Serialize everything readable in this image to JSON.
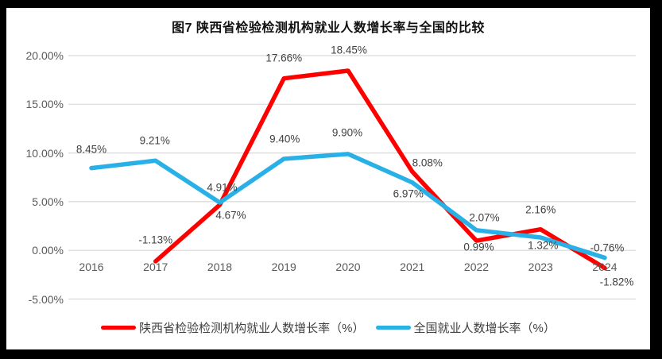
{
  "frame": {
    "background": "#000000",
    "canvas_background": "#ffffff"
  },
  "colors": {
    "grid": "#d9d9d9",
    "axis_text": "#595959",
    "data_label_text": "#404040",
    "title_text": "#111111",
    "series_red": "#fe0000",
    "series_blue": "#29b0e6"
  },
  "chart_data": {
    "type": "line",
    "title": "图7 陕西省检验检测机构就业人数增长率与全国的比较",
    "xlabel": "",
    "ylabel": "",
    "categories": [
      "2016",
      "2017",
      "2018",
      "2019",
      "2020",
      "2021",
      "2022",
      "2023",
      "2024"
    ],
    "series": [
      {
        "name": "陕西省检验检测机构就业人数增长率（%）",
        "color": "#fe0000",
        "values": [
          null,
          -1.13,
          4.67,
          17.66,
          18.45,
          8.08,
          0.99,
          2.16,
          -1.82
        ],
        "labels": [
          null,
          "-1.13%",
          "4.67%",
          "17.66%",
          "18.45%",
          "8.08%",
          "0.99%",
          "2.16%",
          "-1.82%"
        ],
        "label_offsets": [
          null,
          [
            0,
            -27
          ],
          [
            14,
            13
          ],
          [
            0,
            -26
          ],
          [
            1,
            -26
          ],
          [
            19,
            -11
          ],
          [
            3,
            8
          ],
          [
            0,
            -25
          ],
          [
            15,
            17
          ]
        ]
      },
      {
        "name": "全国就业人数增长率（%）",
        "color": "#29b0e6",
        "values": [
          8.45,
          9.21,
          4.91,
          9.4,
          9.9,
          6.97,
          2.07,
          1.32,
          -0.76
        ],
        "labels": [
          "8.45%",
          "9.21%",
          "4.91%",
          "9.40%",
          "9.90%",
          "6.97%",
          "2.07%",
          "1.32%",
          "-0.76%"
        ],
        "label_offsets": [
          [
            0,
            -24
          ],
          [
            -1,
            -25
          ],
          [
            3,
            -19
          ],
          [
            1,
            -25
          ],
          [
            -1,
            -27
          ],
          [
            -5,
            14
          ],
          [
            10,
            -16
          ],
          [
            3,
            10
          ],
          [
            3,
            -13
          ]
        ]
      }
    ],
    "y_ticks": [
      {
        "label": "20.00%",
        "value": 20
      },
      {
        "label": "15.00%",
        "value": 15
      },
      {
        "label": "10.00%",
        "value": 10
      },
      {
        "label": "5.00%",
        "value": 5
      },
      {
        "label": "0.00%",
        "value": 0
      },
      {
        "label": "-5.00%",
        "value": -5
      }
    ],
    "ylim": [
      -5,
      20
    ],
    "grid": true,
    "legend_position": "bottom"
  }
}
